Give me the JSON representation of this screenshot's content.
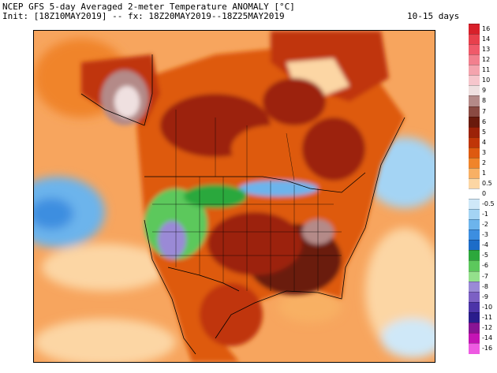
{
  "header": {
    "title": "NCEP GFS 5-day Averaged 2-meter Temperature ANOMALY [°C]",
    "subtitle": "Init: [18Z10MAY2019] -- fx: 18Z20MAY2019--18Z25MAY2019",
    "range": "10-15 days"
  },
  "colorbar": {
    "labels": [
      "16",
      "14",
      "13",
      "12",
      "11",
      "10",
      "9",
      "8",
      "7",
      "6",
      "5",
      "4",
      "3",
      "2",
      "1",
      "0.5",
      "0",
      "-0.5",
      "-1",
      "-2",
      "-3",
      "-4",
      "-5",
      "-6",
      "-7",
      "-8",
      "-9",
      "-10",
      "-11",
      "-12",
      "-14",
      "-16"
    ],
    "colors": [
      "#d8202a",
      "#e8404c",
      "#f05a6a",
      "#f2808e",
      "#f4a4ae",
      "#f6c6cc",
      "#efe0e0",
      "#b48a88",
      "#8a4a42",
      "#6a1a0c",
      "#9c2208",
      "#c03608",
      "#de5a10",
      "#f0842a",
      "#f8b064",
      "#fcd6a4",
      "#ffffff",
      "#cfe8f8",
      "#a4d4f4",
      "#6cb4ec",
      "#3c8ee0",
      "#1c6cc8",
      "#2ca83c",
      "#5cc85c",
      "#94e08c",
      "#9a8ad6",
      "#7c60c4",
      "#4c34a8",
      "#2a1c8c",
      "#881494",
      "#c414b4",
      "#ee5ae2"
    ]
  }
}
